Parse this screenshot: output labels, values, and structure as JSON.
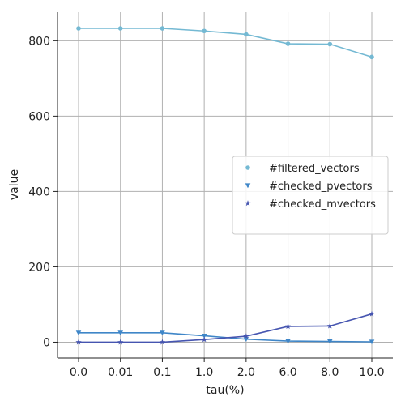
{
  "chart_data": {
    "type": "line",
    "title": "",
    "xlabel": "tau(%)",
    "ylabel": "value",
    "categories": [
      "0.0",
      "0.01",
      "0.1",
      "1.0",
      "2.0",
      "6.0",
      "8.0",
      "10.0"
    ],
    "yticks": [
      0,
      200,
      400,
      600,
      800
    ],
    "ylim": [
      -42,
      876
    ],
    "grid": true,
    "legend_position": "center-right",
    "series": [
      {
        "name": "#filtered_vectors",
        "color": "#74b9d3",
        "marker": "circle",
        "values": [
          833,
          833,
          833,
          826,
          817,
          792,
          791,
          757
        ]
      },
      {
        "name": "#checked_pvectors",
        "color": "#3f86c8",
        "marker": "triangle-down",
        "values": [
          25,
          25,
          25,
          17,
          8,
          3,
          2,
          1
        ]
      },
      {
        "name": "#checked_mvectors",
        "color": "#4655b0",
        "marker": "star",
        "values": [
          0,
          0,
          0,
          7,
          16,
          42,
          43,
          75
        ]
      }
    ]
  }
}
